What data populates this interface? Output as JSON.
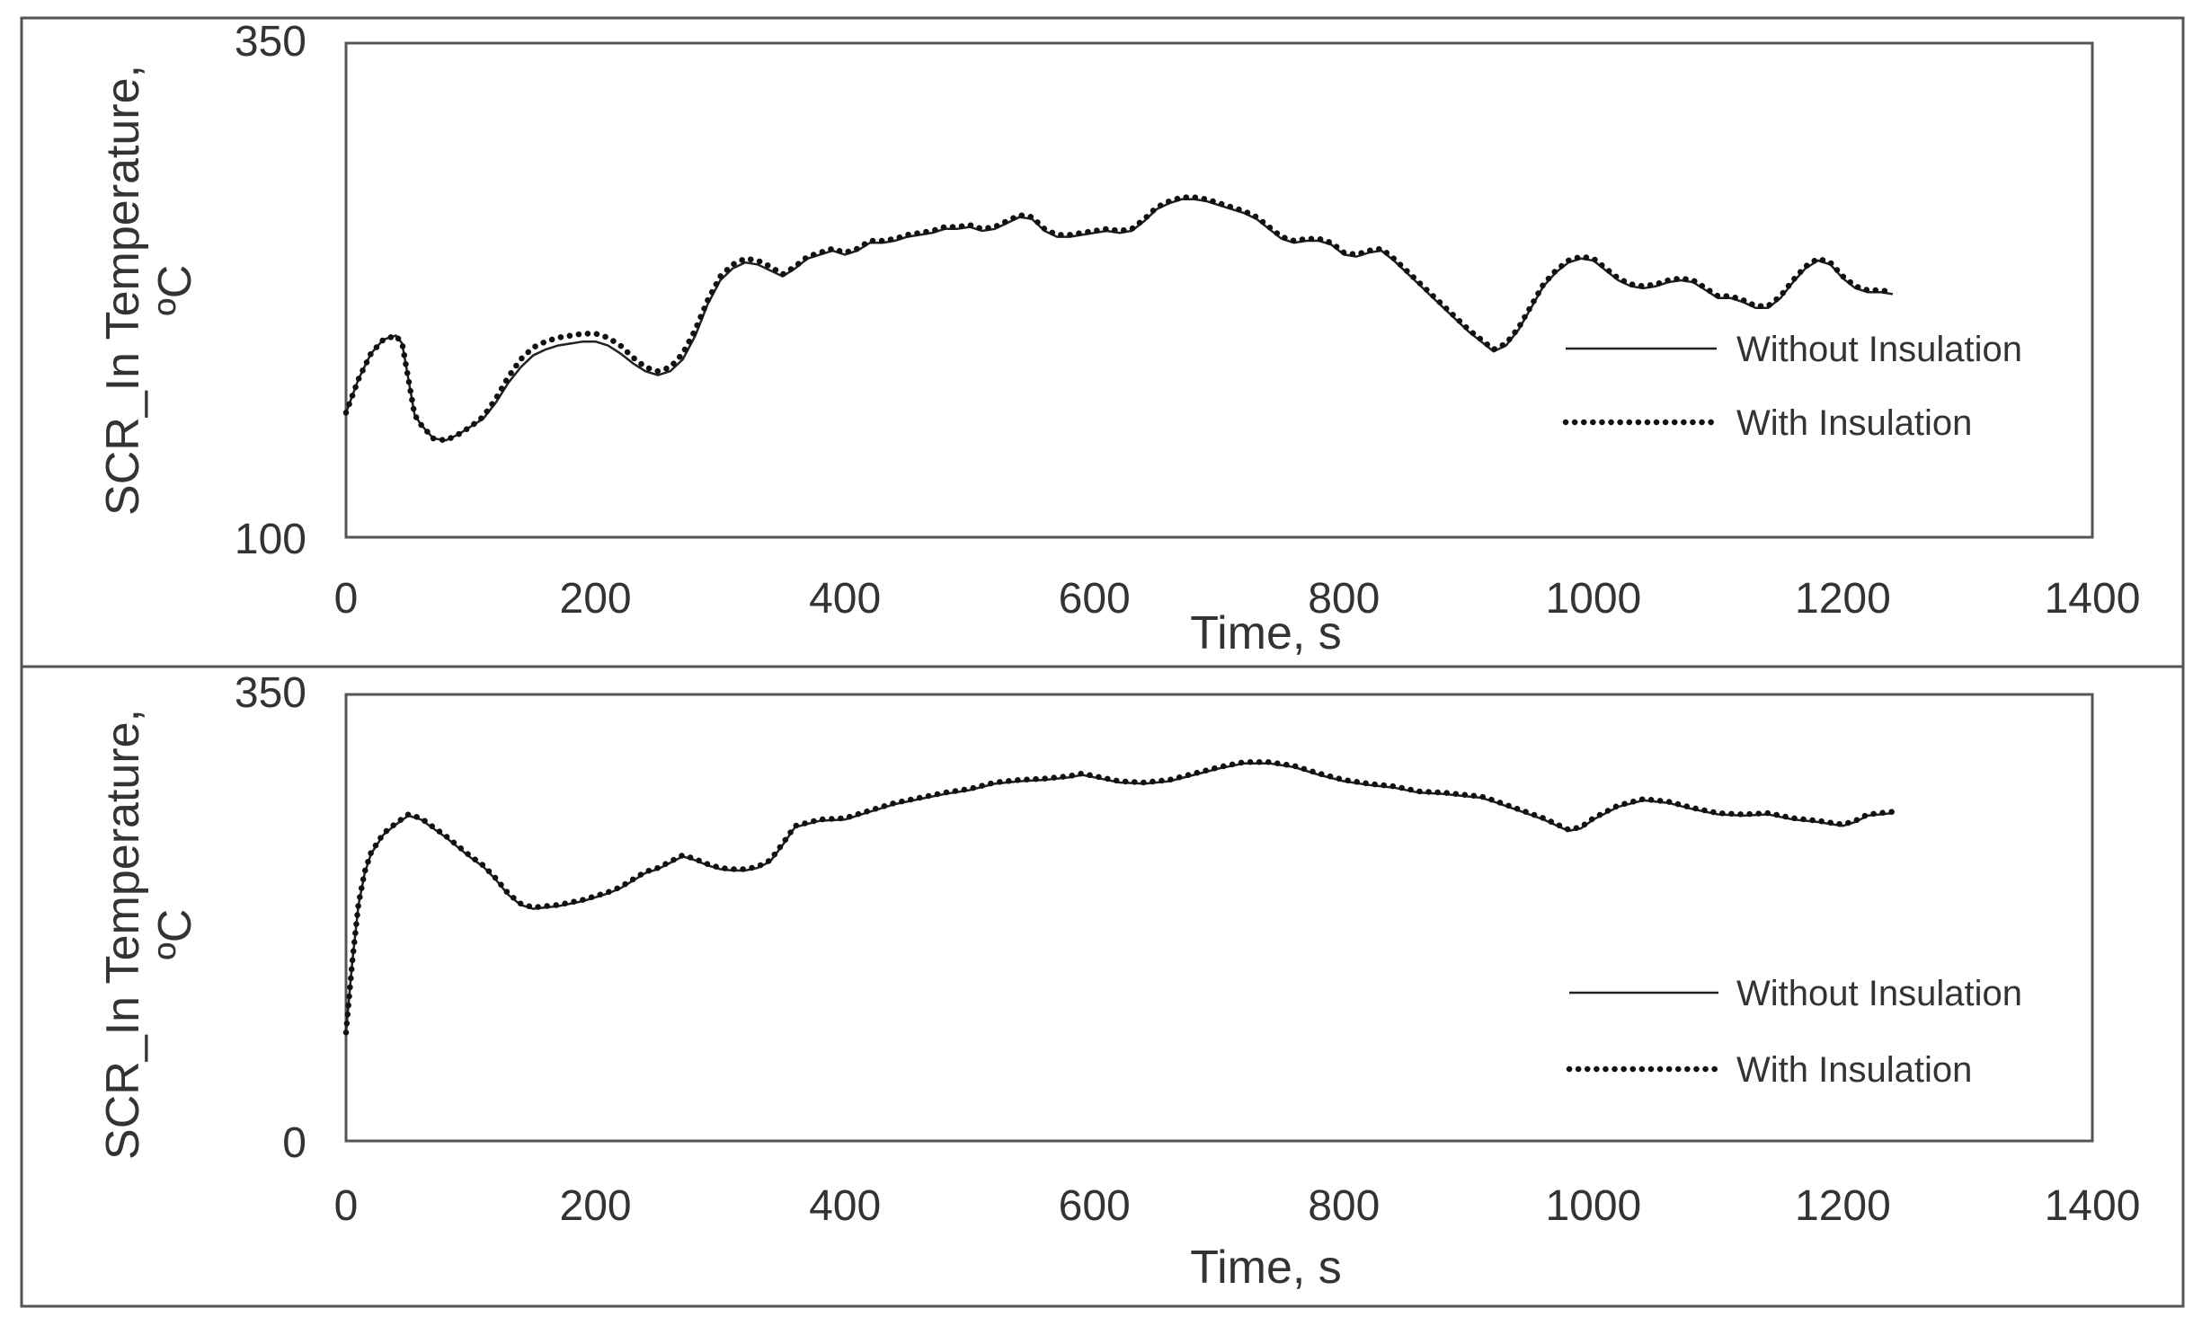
{
  "chart_data": [
    {
      "type": "line",
      "xlabel": "Time, s",
      "ylabel_line1": "SCR_In Temperature,",
      "ylabel_line2": "ºC",
      "xlim": [
        0,
        1400
      ],
      "ylim": [
        100,
        350
      ],
      "xticks": [
        "0",
        "200",
        "400",
        "600",
        "800",
        "1000",
        "1200",
        "1400"
      ],
      "yticks": [
        "100",
        "350"
      ],
      "legend_position": "right",
      "grid": false,
      "series": [
        {
          "name": "Without Insulation",
          "style": "solid",
          "x": [
            0,
            10,
            20,
            30,
            40,
            45,
            50,
            55,
            60,
            70,
            80,
            90,
            100,
            110,
            120,
            130,
            140,
            150,
            160,
            170,
            180,
            190,
            200,
            210,
            220,
            230,
            240,
            250,
            260,
            270,
            280,
            290,
            300,
            310,
            320,
            330,
            340,
            350,
            360,
            370,
            380,
            390,
            400,
            410,
            420,
            430,
            440,
            450,
            460,
            470,
            480,
            490,
            500,
            510,
            520,
            530,
            540,
            550,
            560,
            570,
            580,
            590,
            600,
            610,
            620,
            630,
            640,
            650,
            660,
            670,
            680,
            690,
            700,
            710,
            720,
            730,
            740,
            750,
            760,
            770,
            780,
            790,
            800,
            810,
            820,
            830,
            840,
            850,
            860,
            870,
            880,
            890,
            900,
            910,
            920,
            930,
            940,
            950,
            960,
            970,
            980,
            990,
            1000,
            1010,
            1020,
            1030,
            1040,
            1050,
            1060,
            1070,
            1080,
            1090,
            1100,
            1110,
            1120,
            1130,
            1140,
            1150,
            1160,
            1170,
            1180,
            1190,
            1200,
            1210,
            1220,
            1230,
            1240
          ],
          "y": [
            163,
            180,
            193,
            200,
            202,
            198,
            180,
            162,
            157,
            150,
            149,
            152,
            156,
            160,
            168,
            178,
            186,
            192,
            195,
            197,
            198,
            199,
            199,
            197,
            193,
            188,
            184,
            182,
            184,
            190,
            202,
            218,
            230,
            236,
            239,
            238,
            235,
            232,
            236,
            241,
            243,
            245,
            243,
            245,
            249,
            249,
            250,
            252,
            253,
            254,
            256,
            256,
            257,
            255,
            256,
            259,
            262,
            261,
            255,
            252,
            252,
            253,
            254,
            255,
            254,
            255,
            260,
            266,
            269,
            271,
            271,
            270,
            268,
            266,
            264,
            261,
            256,
            251,
            249,
            250,
            250,
            248,
            243,
            242,
            244,
            245,
            240,
            234,
            228,
            222,
            216,
            210,
            204,
            199,
            194,
            197,
            205,
            216,
            227,
            234,
            239,
            241,
            240,
            235,
            230,
            227,
            226,
            227,
            229,
            230,
            229,
            225,
            221,
            221,
            219,
            216,
            216,
            221,
            229,
            236,
            240,
            238,
            231,
            226,
            224,
            224,
            223
          ]
        },
        {
          "name": "With Insulation",
          "style": "dotted",
          "x": [
            0,
            10,
            20,
            30,
            40,
            45,
            50,
            55,
            60,
            70,
            80,
            90,
            100,
            110,
            120,
            130,
            140,
            150,
            160,
            170,
            180,
            190,
            200,
            210,
            220,
            230,
            240,
            250,
            260,
            270,
            280,
            290,
            300,
            310,
            320,
            330,
            340,
            350,
            360,
            370,
            380,
            390,
            400,
            410,
            420,
            430,
            440,
            450,
            460,
            470,
            480,
            490,
            500,
            510,
            520,
            530,
            540,
            550,
            560,
            570,
            580,
            590,
            600,
            610,
            620,
            630,
            640,
            650,
            660,
            670,
            680,
            690,
            700,
            710,
            720,
            730,
            740,
            750,
            760,
            770,
            780,
            790,
            800,
            810,
            820,
            830,
            840,
            850,
            860,
            870,
            880,
            890,
            900,
            910,
            920,
            930,
            940,
            950,
            960,
            970,
            980,
            990,
            1000,
            1010,
            1020,
            1030,
            1040,
            1050,
            1060,
            1070,
            1080,
            1090,
            1100,
            1110,
            1120,
            1130,
            1140,
            1150,
            1160,
            1170,
            1180,
            1190,
            1200,
            1210,
            1220,
            1230,
            1240
          ],
          "y": [
            163,
            180,
            193,
            200,
            202,
            198,
            180,
            162,
            157,
            150,
            149,
            152,
            156,
            161,
            170,
            181,
            190,
            196,
            199,
            201,
            202,
            203,
            203,
            201,
            197,
            191,
            186,
            184,
            186,
            193,
            205,
            220,
            232,
            238,
            241,
            240,
            237,
            233,
            237,
            242,
            244,
            246,
            244,
            246,
            250,
            250,
            251,
            253,
            254,
            255,
            257,
            257,
            258,
            256,
            257,
            260,
            263,
            262,
            256,
            253,
            253,
            254,
            255,
            256,
            255,
            256,
            261,
            267,
            270,
            272,
            272,
            271,
            269,
            267,
            265,
            262,
            257,
            252,
            250,
            251,
            251,
            249,
            244,
            243,
            245,
            246,
            241,
            235,
            229,
            223,
            217,
            211,
            205,
            200,
            195,
            198,
            206,
            217,
            228,
            235,
            240,
            242,
            241,
            236,
            231,
            228,
            227,
            228,
            230,
            231,
            230,
            226,
            222,
            222,
            220,
            217,
            217,
            222,
            230,
            237,
            241,
            239,
            232,
            227,
            225,
            225,
            224
          ]
        }
      ]
    },
    {
      "type": "line",
      "xlabel": "Time, s",
      "ylabel_line1": "SCR_In Temperature,",
      "ylabel_line2": "ºC",
      "xlim": [
        0,
        1400
      ],
      "ylim": [
        0,
        350
      ],
      "xticks": [
        "0",
        "200",
        "400",
        "600",
        "800",
        "1000",
        "1200",
        "1400"
      ],
      "yticks": [
        "0",
        "350"
      ],
      "legend_position": "right",
      "grid": false,
      "series": [
        {
          "name": "Without Insulation",
          "style": "solid",
          "x": [
            0,
            5,
            10,
            15,
            20,
            30,
            40,
            50,
            60,
            70,
            80,
            90,
            100,
            110,
            120,
            130,
            140,
            150,
            160,
            170,
            180,
            190,
            200,
            210,
            220,
            230,
            240,
            250,
            260,
            270,
            280,
            290,
            300,
            310,
            320,
            330,
            340,
            350,
            360,
            380,
            400,
            420,
            440,
            460,
            480,
            500,
            520,
            540,
            560,
            580,
            590,
            600,
            620,
            640,
            660,
            680,
            700,
            720,
            740,
            760,
            780,
            800,
            820,
            840,
            860,
            880,
            900,
            910,
            920,
            940,
            960,
            980,
            990,
            1000,
            1020,
            1040,
            1060,
            1080,
            1100,
            1120,
            1140,
            1160,
            1180,
            1200,
            1210,
            1220,
            1240
          ],
          "y": [
            85,
            140,
            185,
            210,
            225,
            240,
            248,
            255,
            252,
            245,
            238,
            230,
            222,
            215,
            205,
            193,
            185,
            182,
            183,
            184,
            186,
            188,
            191,
            194,
            198,
            204,
            210,
            213,
            218,
            223,
            220,
            216,
            213,
            212,
            212,
            214,
            219,
            232,
            246,
            251,
            252,
            258,
            264,
            268,
            272,
            275,
            280,
            282,
            283,
            285,
            287,
            285,
            281,
            280,
            282,
            287,
            292,
            296,
            296,
            293,
            287,
            282,
            279,
            277,
            273,
            272,
            270,
            269,
            266,
            259,
            252,
            243,
            245,
            252,
            262,
            267,
            265,
            260,
            256,
            255,
            256,
            252,
            250,
            247,
            250,
            255,
            257
          ]
        },
        {
          "name": "With Insulation",
          "style": "dotted",
          "x": [
            0,
            5,
            10,
            15,
            20,
            30,
            40,
            50,
            60,
            70,
            80,
            90,
            100,
            110,
            120,
            130,
            140,
            150,
            160,
            170,
            180,
            190,
            200,
            210,
            220,
            230,
            240,
            250,
            260,
            270,
            280,
            290,
            300,
            310,
            320,
            330,
            340,
            350,
            360,
            380,
            400,
            420,
            440,
            460,
            480,
            500,
            520,
            540,
            560,
            580,
            590,
            600,
            620,
            640,
            660,
            680,
            700,
            720,
            740,
            760,
            780,
            800,
            820,
            840,
            860,
            880,
            900,
            910,
            920,
            940,
            960,
            980,
            990,
            1000,
            1020,
            1040,
            1060,
            1080,
            1100,
            1120,
            1140,
            1160,
            1180,
            1200,
            1210,
            1220,
            1240
          ],
          "y": [
            85,
            140,
            186,
            211,
            226,
            241,
            249,
            256,
            253,
            246,
            239,
            231,
            223,
            216,
            206,
            194,
            186,
            183,
            184,
            185,
            187,
            189,
            192,
            195,
            199,
            205,
            211,
            214,
            219,
            224,
            221,
            217,
            214,
            213,
            213,
            215,
            220,
            233,
            247,
            252,
            253,
            259,
            265,
            269,
            273,
            276,
            281,
            283,
            284,
            286,
            288,
            286,
            282,
            281,
            283,
            288,
            293,
            297,
            297,
            294,
            288,
            283,
            280,
            278,
            274,
            273,
            271,
            270,
            267,
            260,
            253,
            244,
            246,
            253,
            263,
            268,
            266,
            261,
            257,
            256,
            257,
            253,
            251,
            248,
            251,
            256,
            258
          ]
        }
      ]
    }
  ]
}
